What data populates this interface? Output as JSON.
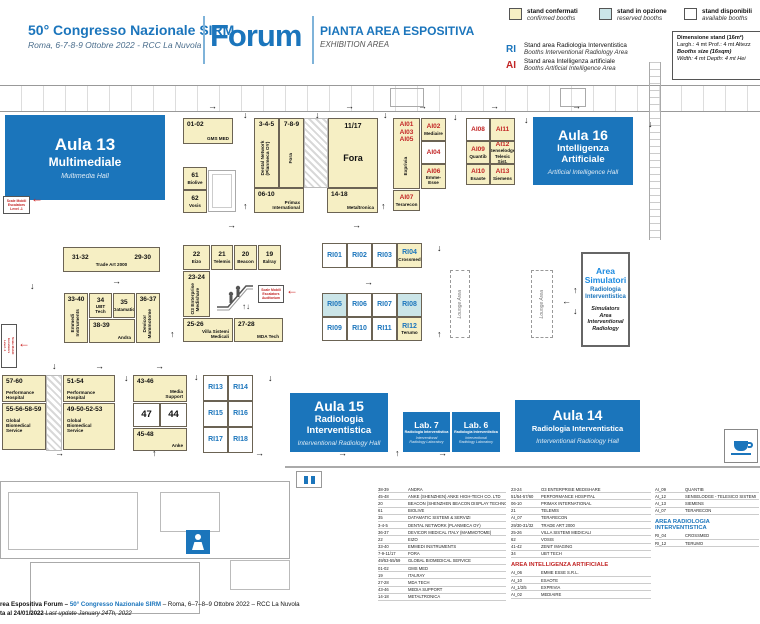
{
  "header": {
    "congress_title": "50° Congresso Nazionale SIRM",
    "congress_subtitle": "Roma, 6-7-8-9 Ottobre 2022 - RCC La Nuvola",
    "logo_text": "Forum",
    "plan_title": "PIANTA AREA ESPOSITIVA",
    "plan_subtitle": "EXHIBITION AREA"
  },
  "legend": {
    "confirmed": {
      "label": "stand confermati",
      "sublabel": "confirmed booths",
      "color": "#f6efc4"
    },
    "option": {
      "label": "stand in opzione",
      "sublabel": "reserved booths",
      "color": "#cbe5e8"
    },
    "available": {
      "label": "stand disponibili",
      "sublabel": "available booths",
      "color": "#ffffff"
    },
    "ri": {
      "code": "RI",
      "label": "Stand area Radiologia Interventistica",
      "sublabel": "Booths Interventional Radiology Area",
      "color": "#1b75bc"
    },
    "ai": {
      "code": "AI",
      "label": "Stand area Intelligenza artificiale",
      "sublabel": "Booths Artificial Intelligence Area",
      "color": "#c22525"
    },
    "sizebox": {
      "line1": "Dimensione stand (16m²)",
      "line2": "Largh.: 4 mt  Prof.: 4 mt  Altezz",
      "line3": "Booths size (16sqm)",
      "line4": "Width: 4 mt   Depth: 4 mt   Hei"
    }
  },
  "map": {
    "halls": [
      {
        "id": "aula13",
        "title": "Aula 13",
        "subtitle": "Multimediale",
        "subtitle_en": "Multimedia Hall"
      },
      {
        "id": "aula16",
        "title": "Aula 16",
        "subtitle": "Intelligenza\nArtificiale",
        "subtitle_en": "Artificial Intelligence Hall"
      },
      {
        "id": "aula15",
        "title": "Aula 15",
        "subtitle": "Radiologia\nInterventistica",
        "subtitle_en": "Interventional Radiology Hall"
      },
      {
        "id": "aula14",
        "title": "Aula 14",
        "subtitle": "Radiologia Interventistica",
        "subtitle_en": "Interventional Radiology Hall"
      },
      {
        "id": "lab7",
        "title": "Lab. 7",
        "subtitle": "Radiologia Interventistica",
        "subtitle_en": "Interventional\nRadiology Laboratory"
      },
      {
        "id": "lab6",
        "title": "Lab. 6",
        "subtitle": "Radiologia Interventistica",
        "subtitle_en": "Interventional\nRadiology Laboratory"
      }
    ],
    "simulators_area": {
      "title": "Area\nSimulatori",
      "subtitle": "Radiologia\nInterventistica",
      "subtitle_en": "Simulators\nArea\nInterventional\nRadiology"
    },
    "lounge_label": "Lounge Area",
    "escalator_notes": [
      {
        "id": "esc-left",
        "text": "Scale Mobili\nEscalators\nLevel -1"
      },
      {
        "id": "esc-left-low",
        "text": "Scale Mobili\nEscalators\nLevel -1"
      },
      {
        "id": "esc-auditorium",
        "text": "Scale Mobili\nEscalators\nAuditorium"
      }
    ],
    "booths": [
      {
        "id": "b0102",
        "num": "01-02",
        "name": "GMS MED",
        "status": "confirmed",
        "kind": "std"
      },
      {
        "id": "b61",
        "num": "61",
        "name": "Biolive",
        "status": "confirmed",
        "kind": "std"
      },
      {
        "id": "b62",
        "num": "62",
        "name": "Vosis",
        "status": "confirmed",
        "kind": "std"
      },
      {
        "id": "b345",
        "num": "3-4-5",
        "name": "Dental Network\n(Planmeca OY)",
        "status": "confirmed",
        "kind": "std"
      },
      {
        "id": "b789",
        "num": "7-8-9",
        "name": "Fora",
        "status": "confirmed",
        "kind": "std"
      },
      {
        "id": "b1117",
        "num": "11/17",
        "name": "Fora",
        "status": "confirmed",
        "kind": "std"
      },
      {
        "id": "b0610",
        "num": "06-10",
        "name": "Primax\nInternational",
        "status": "confirmed",
        "kind": "std"
      },
      {
        "id": "b1418",
        "num": "14-18",
        "name": "Metaltronica",
        "status": "confirmed",
        "kind": "std"
      },
      {
        "id": "ai135",
        "num": "AI01\nAI03\nAI05",
        "name": "Exprivia",
        "status": "confirmed",
        "kind": "ai"
      },
      {
        "id": "ai02",
        "num": "AI02",
        "name": "Mediaire",
        "status": "confirmed",
        "kind": "ai"
      },
      {
        "id": "ai04",
        "num": "AI04",
        "name": "",
        "status": "available",
        "kind": "ai"
      },
      {
        "id": "ai06",
        "num": "AI06",
        "name": "Emme-\nEsse",
        "status": "confirmed",
        "kind": "ai"
      },
      {
        "id": "ai07",
        "num": "AI07",
        "name": "Terarecon",
        "status": "confirmed",
        "kind": "ai"
      },
      {
        "id": "ai08",
        "num": "AI08",
        "name": "",
        "status": "available",
        "kind": "ai"
      },
      {
        "id": "ai11",
        "num": "AI11",
        "name": "",
        "status": "confirmed",
        "kind": "ai"
      },
      {
        "id": "ai09",
        "num": "AI09",
        "name": "Quantib",
        "status": "confirmed",
        "kind": "ai"
      },
      {
        "id": "ai12",
        "num": "AI12",
        "name": "Senselodge\nTelesic Sist.",
        "status": "confirmed",
        "kind": "ai"
      },
      {
        "id": "ai10",
        "num": "AI10",
        "name": "Esaote",
        "status": "confirmed",
        "kind": "ai"
      },
      {
        "id": "ai13",
        "num": "AI13",
        "name": "Siemens",
        "status": "confirmed",
        "kind": "ai"
      },
      {
        "id": "b3132",
        "num": "31-32",
        "num2": "29-30",
        "name": "Trade Art 2000",
        "status": "confirmed",
        "kind": "std"
      },
      {
        "id": "b3340",
        "num": "33-40",
        "name": "Emmedi\nInstruments",
        "status": "confirmed",
        "kind": "std"
      },
      {
        "id": "b34",
        "num": "34",
        "name": "UBT\nTech",
        "status": "confirmed",
        "kind": "std"
      },
      {
        "id": "b35",
        "num": "35",
        "name": "Datamatic",
        "status": "confirmed",
        "kind": "std"
      },
      {
        "id": "b3839",
        "num": "38-39",
        "name": "Andra",
        "status": "confirmed",
        "kind": "std"
      },
      {
        "id": "b3637",
        "num": "36-37",
        "name": "Devicor\nMammotome",
        "status": "confirmed",
        "kind": "std"
      },
      {
        "id": "b22",
        "num": "22",
        "name": "Eizo",
        "status": "confirmed",
        "kind": "std"
      },
      {
        "id": "b21",
        "num": "21",
        "name": "Telemis",
        "status": "confirmed",
        "kind": "std"
      },
      {
        "id": "b20",
        "num": "20",
        "name": "Beacon",
        "status": "confirmed",
        "kind": "std"
      },
      {
        "id": "b19",
        "num": "19",
        "name": "Italray",
        "status": "confirmed",
        "kind": "std"
      },
      {
        "id": "b2324",
        "num": "23-24",
        "name": "O3 Enterprise\nMedishare",
        "status": "confirmed",
        "kind": "std"
      },
      {
        "id": "b2526",
        "num": "25-26",
        "name": "Villa Sistemi\nMedicali",
        "status": "confirmed",
        "kind": "std"
      },
      {
        "id": "b2728",
        "num": "27-28",
        "name": "MDA Tech",
        "status": "confirmed",
        "kind": "std"
      },
      {
        "id": "ri01",
        "num": "RI01",
        "name": "",
        "status": "available",
        "kind": "ri"
      },
      {
        "id": "ri02",
        "num": "RI02",
        "name": "",
        "status": "available",
        "kind": "ri"
      },
      {
        "id": "ri03",
        "num": "RI03",
        "name": "",
        "status": "available",
        "kind": "ri"
      },
      {
        "id": "ri04",
        "num": "RI04",
        "name": "Crossmed",
        "status": "confirmed",
        "kind": "ri"
      },
      {
        "id": "ri05",
        "num": "RI05",
        "name": "",
        "status": "option",
        "kind": "ri"
      },
      {
        "id": "ri06",
        "num": "RI06",
        "name": "",
        "status": "available",
        "kind": "ri"
      },
      {
        "id": "ri07",
        "num": "RI07",
        "name": "",
        "status": "available",
        "kind": "ri"
      },
      {
        "id": "ri08",
        "num": "RI08",
        "name": "",
        "status": "option",
        "kind": "ri"
      },
      {
        "id": "ri09",
        "num": "RI09",
        "name": "",
        "status": "available",
        "kind": "ri"
      },
      {
        "id": "ri10",
        "num": "RI10",
        "name": "",
        "status": "available",
        "kind": "ri"
      },
      {
        "id": "ri11",
        "num": "RI11",
        "name": "",
        "status": "available",
        "kind": "ri"
      },
      {
        "id": "ri12",
        "num": "RI12",
        "name": "Terumo",
        "status": "confirmed",
        "kind": "ri"
      },
      {
        "id": "ri13",
        "num": "RI13",
        "name": "",
        "status": "available",
        "kind": "ri"
      },
      {
        "id": "ri14",
        "num": "RI14",
        "name": "",
        "status": "available",
        "kind": "ri"
      },
      {
        "id": "ri15",
        "num": "RI15",
        "name": "",
        "status": "available",
        "kind": "ri"
      },
      {
        "id": "ri16",
        "num": "RI16",
        "name": "",
        "status": "available",
        "kind": "ri"
      },
      {
        "id": "ri17",
        "num": "RI17",
        "name": "",
        "status": "available",
        "kind": "ri"
      },
      {
        "id": "ri18",
        "num": "RI18",
        "name": "",
        "status": "available",
        "kind": "ri"
      },
      {
        "id": "b5760",
        "num": "57-60",
        "name": "Performance\nHospital",
        "status": "confirmed",
        "kind": "std"
      },
      {
        "id": "b5559",
        "num": "55-56-58-59",
        "name": "Global\nBiomedical\nService",
        "status": "confirmed",
        "kind": "std"
      },
      {
        "id": "b5154",
        "num": "51-54",
        "name": "Performance\nHospital",
        "status": "confirmed",
        "kind": "std"
      },
      {
        "id": "b4953",
        "num": "49-50-52-53",
        "name": "Global\nBiomedical\nService",
        "status": "confirmed",
        "kind": "std"
      },
      {
        "id": "b4346",
        "num": "43-46",
        "name": "Media\nSupport",
        "status": "confirmed",
        "kind": "std"
      },
      {
        "id": "b47",
        "num": "47",
        "name": "",
        "status": "available",
        "kind": "std"
      },
      {
        "id": "b44",
        "num": "44",
        "name": "",
        "status": "available",
        "kind": "std"
      },
      {
        "id": "b4548",
        "num": "45-48",
        "name": "Anke",
        "status": "confirmed",
        "kind": "std"
      }
    ]
  },
  "lists": {
    "col1": {
      "sections": [
        {
          "rows": [
            [
              "38-39",
              "ANDRA"
            ],
            [
              "45-48",
              "ANKE (SHENZHEN) ANKE HIGH-TECH CO. LTD"
            ],
            [
              "20",
              "BEACON (SHENZHEN BEACON DISPLAY TECHNOLOGY CO. LTD)"
            ],
            [
              "61",
              "BIOLIVE"
            ],
            [
              "35",
              "DATAMATIC SISTEMI & SERVIZI"
            ],
            [
              "3-4-5",
              "DENTAL NETWORK (PLANMECA OY)"
            ],
            [
              "36-37",
              "DEVICOR MEDICAL ITALY (MAMMOTOME)"
            ],
            [
              "22",
              "EIZO"
            ],
            [
              "33-40",
              "EMMEDI INSTRUMENTS"
            ],
            [
              "7-9-11/17",
              "FORA"
            ],
            [
              "49/53-55/59",
              "GLOBAL BIOMEDICAL SERVICE"
            ],
            [
              "01-02",
              "GMS MED"
            ],
            [
              "19",
              "ITALRAY"
            ],
            [
              "27-28",
              "MDA TECH"
            ],
            [
              "43-46",
              "MEDIA SUPPORT"
            ],
            [
              "14-18",
              "METALTRONICA"
            ]
          ]
        }
      ]
    },
    "col2": {
      "sections": [
        {
          "rows": [
            [
              "23-24",
              "O3 ENTERPRISE MEDISHARE"
            ],
            [
              "51/54-57/60",
              "PERFORMANCE HOSPITAL"
            ],
            [
              "06-10",
              "PRIMAX INTERNATIONAL"
            ],
            [
              "21",
              "TELEMIS"
            ],
            [
              "AI_07",
              "TERARECON"
            ],
            [
              "29/30-31/32",
              "TRADE ART 2000"
            ],
            [
              "25-26",
              "VILLA SISTEMI MEDICALI"
            ],
            [
              "62",
              "VOSIS"
            ],
            [
              "41-42",
              "ZENIT IMAGING"
            ],
            [
              "34",
              "UBT TECH"
            ]
          ]
        },
        {
          "header": "AREA INTELLIGENZA ARTIFICIALE",
          "header_color": "red",
          "rows": [
            [
              "AI_06",
              "EMME ESSE S.R.L."
            ],
            [
              "AI_10",
              "ESAOTE"
            ],
            [
              "AI_1/3/5",
              "EXPRIVIA"
            ],
            [
              "AI_02",
              "MEDIAIRE"
            ]
          ]
        }
      ]
    },
    "col3": {
      "sections": [
        {
          "rows": [
            [
              "AI_09",
              "QUANTIB"
            ],
            [
              "AI_12",
              "SENSELODGE - TELESICO SISTEMI"
            ],
            [
              "AI_13",
              "SIEMENS"
            ],
            [
              "AI_07",
              "TERARECON"
            ]
          ]
        },
        {
          "header": "AREA RADIOLOGIA INTERVENTISTICA",
          "header_color": "blue",
          "rows": [
            [
              "RI_04",
              "CROSSMED"
            ],
            [
              "RI_12",
              "TERUMO"
            ]
          ]
        }
      ]
    }
  },
  "footer": {
    "line1_prefix": "rea Espositiva Forum – ",
    "line1_highlight": "50° Congresso Nazionale SIRM",
    "line1_suffix": " – Roma, 6–7–8–9 Ottobre 2022 – RCC La Nuvola",
    "line2_bold": "ta al 24/01/2022",
    "line2_italic": " Last update January 24Th, 2022"
  }
}
